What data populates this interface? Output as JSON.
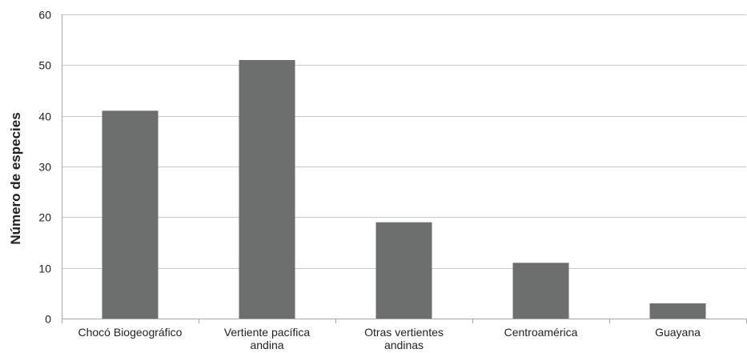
{
  "chart_data": {
    "type": "bar",
    "categories": [
      [
        "Chocó Biogeográfico"
      ],
      [
        "Vertiente pacífica",
        "andina"
      ],
      [
        "Otras vertientes",
        "andinas"
      ],
      [
        "Centroamérica"
      ],
      [
        "Guayana"
      ]
    ],
    "values": [
      41,
      51,
      19,
      11,
      3
    ],
    "title": "",
    "xlabel": "",
    "ylabel": "Número de especies",
    "ylim": [
      0,
      60
    ],
    "yticks": [
      0,
      10,
      20,
      30,
      40,
      50,
      60
    ],
    "grid": true,
    "legend": "none",
    "colors": {
      "bar": "#6d6e6e",
      "grid": "#c8c8c8",
      "axis": "#a8a8a8",
      "text": "#231f20"
    }
  }
}
